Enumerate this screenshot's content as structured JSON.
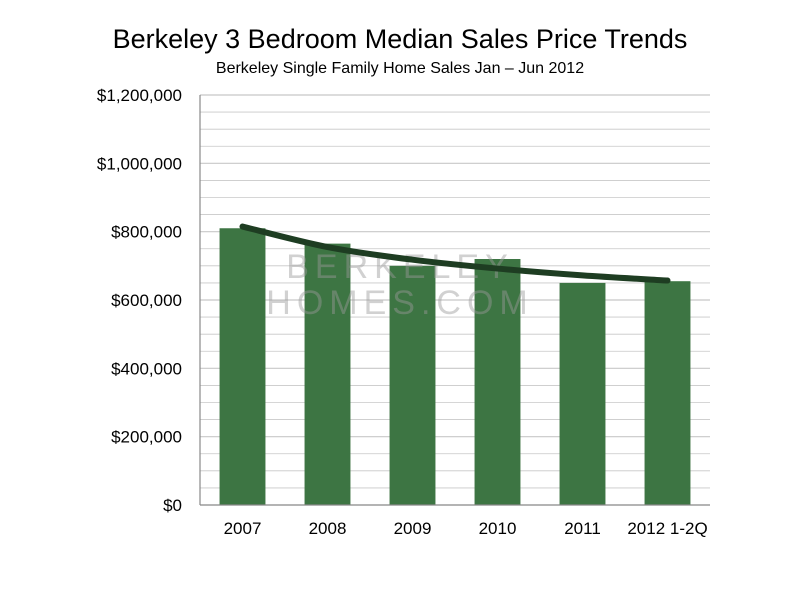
{
  "chart_data": {
    "type": "bar",
    "title": "Berkeley 3 Bedroom Median Sales Price Trends",
    "subtitle": "Berkeley Single Family Home Sales Jan – Jun 2012",
    "xlabel": "",
    "ylabel": "",
    "categories": [
      "2007",
      "2008",
      "2009",
      "2010",
      "2011",
      "2012 1-2Q"
    ],
    "values": [
      810000,
      765000,
      700000,
      720000,
      650000,
      655000
    ],
    "trendline": [
      815000,
      755000,
      718000,
      692000,
      672000,
      657000
    ],
    "ylim": [
      0,
      1200000
    ],
    "yticks": [
      0,
      200000,
      400000,
      600000,
      800000,
      1000000,
      1200000
    ],
    "ytick_labels": [
      "$0",
      "$200,000",
      "$400,000",
      "$600,000",
      "$800,000",
      "$1,000,000",
      "$1,200,000"
    ],
    "minor_grid_step": 50000,
    "grid": true,
    "legend": "none",
    "colors": {
      "bar": "#3d7543",
      "trendline": "#1e3d22",
      "grid": "#c8c8c8"
    }
  },
  "watermark": {
    "line1": "BERKELEY",
    "line2": "HOMES.COM"
  }
}
